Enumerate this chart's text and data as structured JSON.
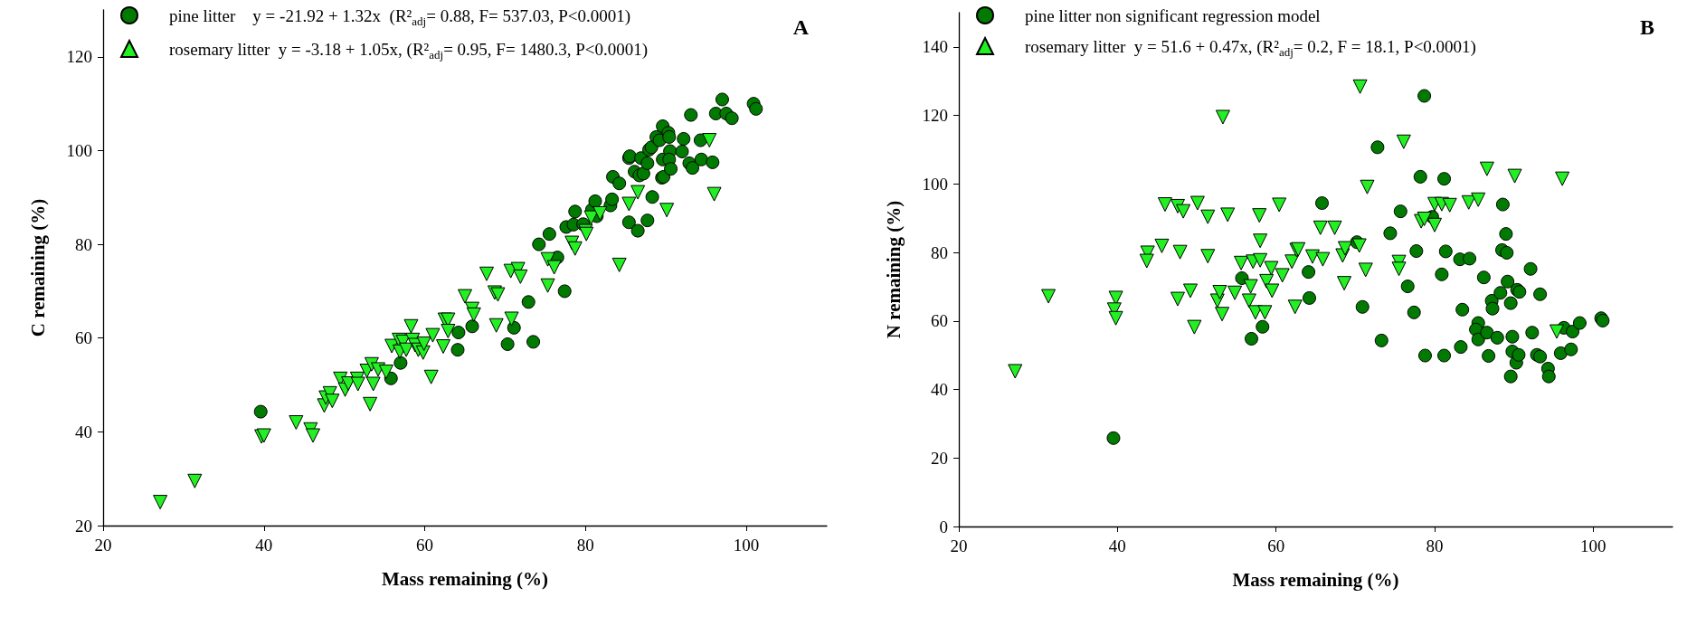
{
  "chart_data": [
    {
      "type": "scatter",
      "xlabel": "Mass remaining (%)",
      "ylabel": "C remaining (%)",
      "xlim": [
        20,
        110
      ],
      "xticks": [
        20,
        40,
        60,
        80,
        100
      ],
      "ylim": [
        20,
        130
      ],
      "yticks": [
        20,
        40,
        60,
        80,
        100,
        120
      ],
      "grid": false,
      "legend": "top left",
      "annotations": [
        "A"
      ],
      "series": [
        {
          "name": "pine litter    y = -21.92 + 1.32x  (R²$_{adj}$= 0.88, F= 537.03, P<0.0001)",
          "color": "#007a00",
          "marker": "circle",
          "x": [
            39.6,
            55.8,
            57.0,
            64.1,
            64.2,
            65.9,
            70.3,
            71.1,
            72.9,
            73.5,
            74.2,
            75.5,
            76.5,
            77.4,
            77.6,
            78.5,
            78.7,
            79.7,
            80.8,
            81.2,
            81.4,
            83.1,
            83.3,
            83.4,
            84.2,
            85.4,
            85.4,
            85.5,
            86.1,
            86.5,
            86.7,
            87.2,
            86.9,
            87.7,
            87.7,
            87.9,
            88.3,
            88.2,
            88.8,
            89.2,
            89.6,
            89.6,
            89.5,
            89.7,
            90.3,
            90.4,
            90.5,
            90.4,
            90.6,
            92.2,
            92.0,
            92.9,
            93.3,
            93.1,
            94.3,
            94.4,
            95.8,
            96.2,
            97.0,
            97.5,
            98.2,
            100.9,
            101.2
          ],
          "values": [
            44.3,
            51.4,
            54.7,
            57.5,
            61.2,
            62.5,
            58.7,
            62.2,
            67.7,
            59.2,
            80.0,
            82.2,
            77.2,
            70.0,
            83.7,
            84.2,
            87.0,
            84.3,
            87.4,
            89.2,
            86.0,
            88.3,
            89.6,
            94.4,
            93.0,
            84.7,
            98.4,
            98.8,
            95.5,
            82.9,
            94.7,
            95.1,
            98.4,
            97.3,
            85.1,
            100.2,
            90.1,
            100.7,
            102.9,
            102.2,
            105.2,
            98.1,
            94.2,
            94.4,
            103.8,
            102.9,
            99.9,
            98.1,
            96.1,
            102.5,
            99.8,
            97.3,
            96.3,
            107.6,
            102.2,
            98.1,
            97.5,
            107.9,
            110.9,
            107.9,
            106.9,
            110.0,
            108.9
          ]
        },
        {
          "name": "rosemary litter  y = -3.18 + 1.05x, (R²$_{adj}$= 0.95, F= 1480.3, P<0.0001)",
          "color": "#22f022",
          "marker": "triangle",
          "x": [
            27.1,
            31.4,
            39.7,
            40.0,
            44.0,
            45.8,
            46.1,
            47.5,
            47.7,
            48.2,
            48.5,
            49.5,
            50.1,
            50.5,
            51.6,
            51.7,
            52.8,
            53.2,
            53.4,
            53.6,
            54.2,
            55.2,
            55.9,
            56.8,
            56.9,
            57.3,
            57.7,
            58.3,
            58.5,
            58.8,
            59.2,
            59.8,
            59.9,
            60.8,
            61.0,
            62.3,
            62.5,
            62.9,
            62.9,
            65.0,
            65.9,
            66.1,
            67.7,
            68.7,
            69.1,
            68.9,
            70.7,
            70.8,
            71.6,
            71.9,
            75.3,
            76.1,
            75.3,
            78.3,
            78.7,
            80.0,
            80.1,
            80.7,
            81.8,
            84.2,
            85.4,
            86.5,
            90.1,
            95.4,
            96.0
          ],
          "values": [
            25.0,
            29.5,
            39.0,
            39.2,
            42.0,
            40.5,
            39.2,
            45.6,
            47.3,
            48.2,
            46.6,
            51.3,
            49.0,
            50.3,
            51.3,
            50.2,
            53.0,
            45.9,
            54.4,
            50.2,
            53.3,
            52.8,
            58.3,
            59.6,
            57.1,
            59.2,
            57.5,
            62.5,
            59.6,
            58.5,
            57.5,
            56.9,
            58.8,
            51.7,
            60.6,
            58.2,
            63.9,
            63.9,
            61.5,
            68.9,
            66.2,
            65.0,
            73.7,
            69.7,
            69.3,
            62.7,
            74.3,
            64.1,
            74.7,
            73.1,
            76.8,
            75.1,
            71.2,
            80.3,
            79.1,
            82.8,
            82.2,
            85.7,
            86.6,
            75.6,
            88.6,
            91.1,
            87.3,
            102.2,
            90.7
          ]
        }
      ]
    },
    {
      "type": "scatter",
      "xlabel": "Mass remaining (%)",
      "ylabel": "N remaining (%)",
      "xlim": [
        20,
        110
      ],
      "xticks": [
        20,
        40,
        60,
        80,
        100
      ],
      "ylim": [
        0,
        150
      ],
      "yticks": [
        0,
        20,
        40,
        60,
        80,
        100,
        120,
        140
      ],
      "grid": false,
      "legend": "top left",
      "annotations": [
        "B"
      ],
      "series": [
        {
          "name": "pine litter non significant regression model",
          "color": "#007a00",
          "marker": "circle",
          "x": [
            39.5,
            55.7,
            56.9,
            58.3,
            64.1,
            64.2,
            65.8,
            70.2,
            70.9,
            72.8,
            73.3,
            74.4,
            75.7,
            76.6,
            77.4,
            77.7,
            78.2,
            78.7,
            78.8,
            79.7,
            80.9,
            81.2,
            81.4,
            81.2,
            83.2,
            84.4,
            83.3,
            83.5,
            85.5,
            85.2,
            85.5,
            86.2,
            86.6,
            86.8,
            87.2,
            87.3,
            87.9,
            88.3,
            88.6,
            88.5,
            89.0,
            89.1,
            89.2,
            89.6,
            89.6,
            89.8,
            89.8,
            90.4,
            90.7,
            90.3,
            90.6,
            92.1,
            92.3,
            92.9,
            93.3,
            93.3,
            94.3,
            94.4,
            95.9,
            96.3,
            97.2,
            97.4,
            98.3,
            101.0,
            101.2
          ],
          "values": [
            25.8,
            72.5,
            54.8,
            58.3,
            74.3,
            66.7,
            94.4,
            83.0,
            64.1,
            110.7,
            54.3,
            85.6,
            92.0,
            70.1,
            62.5,
            80.4,
            102.1,
            125.7,
            49.9,
            90.4,
            73.6,
            101.5,
            80.3,
            49.9,
            78.0,
            78.2,
            52.4,
            63.3,
            59.4,
            57.5,
            54.6,
            72.7,
            56.6,
            49.8,
            65.9,
            63.6,
            55.1,
            68.2,
            94.0,
            80.7,
            85.4,
            79.9,
            71.5,
            65.2,
            43.8,
            55.4,
            51.1,
            69.1,
            68.5,
            47.8,
            50.1,
            75.2,
            56.6,
            50.1,
            49.6,
            67.8,
            46.1,
            43.8,
            50.6,
            58.0,
            51.7,
            56.9,
            59.4,
            60.8,
            60.1
          ]
        },
        {
          "name": "rosemary litter  y = 51.6 + 0.47x, (R²$_{adj}$= 0.2, F = 18.1, P<0.0001)",
          "color": "#22f022",
          "marker": "triangle",
          "x": [
            27.1,
            31.3,
            39.8,
            39.6,
            39.8,
            43.8,
            43.7,
            45.6,
            46.0,
            47.6,
            48.3,
            47.9,
            47.6,
            49.2,
            50.1,
            49.7,
            51.4,
            51.4,
            52.6,
            52.9,
            53.2,
            53.3,
            53.9,
            54.8,
            55.6,
            56.8,
            56.6,
            57.1,
            57.4,
            57.9,
            58.0,
            58.0,
            58.6,
            58.8,
            59.4,
            59.5,
            60.4,
            60.8,
            62.0,
            62.4,
            62.6,
            62.8,
            64.6,
            65.9,
            65.6,
            67.4,
            68.4,
            68.7,
            68.6,
            70.5,
            70.6,
            71.3,
            71.5,
            75.5,
            75.5,
            76.1,
            78.3,
            78.7,
            80.0,
            80.0,
            80.9,
            81.9,
            84.3,
            85.5,
            86.6,
            90.1,
            96.1,
            95.4
          ],
          "values": [
            45.3,
            67.2,
            66.7,
            63.3,
            60.8,
            79.9,
            77.5,
            81.9,
            94.0,
            93.5,
            92.0,
            80.1,
            66.4,
            68.8,
            94.4,
            58.2,
            90.4,
            78.9,
            65.9,
            68.4,
            62.0,
            119.5,
            91.0,
            68.2,
            76.9,
            70.1,
            65.9,
            77.3,
            62.5,
            90.8,
            83.4,
            77.7,
            62.5,
            71.6,
            75.4,
            68.8,
            93.9,
            73.3,
            77.3,
            64.1,
            80.7,
            80.9,
            78.8,
            78.0,
            87.2,
            87.2,
            79.1,
            81.2,
            71.0,
            82.0,
            128.4,
            74.9,
            99.1,
            77.2,
            75.2,
            112.3,
            89.1,
            89.8,
            88.0,
            94.1,
            94.1,
            93.8,
            94.6,
            95.4,
            104.4,
            102.3,
            101.5,
            56.9
          ]
        }
      ]
    }
  ]
}
